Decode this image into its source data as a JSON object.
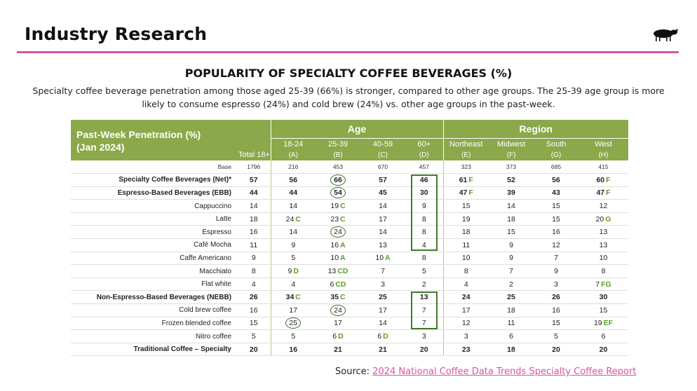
{
  "header": {
    "title": "Industry Research",
    "logo": "sheep-logo"
  },
  "chart": {
    "title": "POPULARITY OF SPECIALTY COFFEE BEVERAGES (%)",
    "subtitle": "Specialty coffee beverage penetration among those aged 25-39 (66%) is stronger, compared to other age groups. The 25-39 age group is more likely to consume espresso (24%) and cold brew (24%) vs. other age groups in the past-week."
  },
  "table": {
    "header_title_line1": "Past-Week Penetration (%)",
    "header_title_line2": "(Jan 2024)",
    "total_label": "Total 18+",
    "group_age": "Age",
    "group_region": "Region",
    "columns": [
      {
        "name": "18-24",
        "letter": "(A)"
      },
      {
        "name": "25-39",
        "letter": "(B)"
      },
      {
        "name": "40-59",
        "letter": "(C)"
      },
      {
        "name": "60+",
        "letter": "(D)"
      },
      {
        "name": "Northeast",
        "letter": "(E)"
      },
      {
        "name": "Midwest",
        "letter": "(F)"
      },
      {
        "name": "South",
        "letter": "(G)"
      },
      {
        "name": "West",
        "letter": "(H)"
      }
    ],
    "rows": [
      {
        "label": "Base",
        "total": "1796",
        "cells": [
          [
            "216",
            ""
          ],
          [
            "453",
            ""
          ],
          [
            "670",
            ""
          ],
          [
            "457",
            ""
          ],
          [
            "323",
            ""
          ],
          [
            "373",
            ""
          ],
          [
            "685",
            ""
          ],
          [
            "415",
            ""
          ]
        ]
      },
      {
        "label": "Specialty Coffee Beverages (Net)*",
        "total": "57",
        "cells": [
          [
            "56",
            ""
          ],
          [
            "66",
            ""
          ],
          [
            "57",
            ""
          ],
          [
            "46",
            ""
          ],
          [
            "61",
            "F"
          ],
          [
            "52",
            ""
          ],
          [
            "56",
            ""
          ],
          [
            "60",
            "F"
          ]
        ]
      },
      {
        "label": "Espresso-Based Beverages (EBB)",
        "total": "44",
        "cells": [
          [
            "44",
            ""
          ],
          [
            "54",
            ""
          ],
          [
            "45",
            ""
          ],
          [
            "30",
            ""
          ],
          [
            "47",
            "F"
          ],
          [
            "39",
            ""
          ],
          [
            "43",
            ""
          ],
          [
            "47",
            "F"
          ]
        ]
      },
      {
        "label": "Cappuccino",
        "total": "14",
        "cells": [
          [
            "14",
            ""
          ],
          [
            "19",
            "C"
          ],
          [
            "14",
            ""
          ],
          [
            "9",
            ""
          ],
          [
            "15",
            ""
          ],
          [
            "14",
            ""
          ],
          [
            "15",
            ""
          ],
          [
            "12",
            ""
          ]
        ]
      },
      {
        "label": "Latte",
        "total": "18",
        "cells": [
          [
            "24",
            "C"
          ],
          [
            "23",
            "C"
          ],
          [
            "17",
            ""
          ],
          [
            "8",
            ""
          ],
          [
            "19",
            ""
          ],
          [
            "18",
            ""
          ],
          [
            "15",
            ""
          ],
          [
            "20",
            "G"
          ]
        ]
      },
      {
        "label": "Espresso",
        "total": "16",
        "cells": [
          [
            "14",
            ""
          ],
          [
            "24",
            ""
          ],
          [
            "14",
            ""
          ],
          [
            "8",
            ""
          ],
          [
            "18",
            ""
          ],
          [
            "15",
            ""
          ],
          [
            "16",
            ""
          ],
          [
            "13",
            ""
          ]
        ]
      },
      {
        "label": "Café Mocha",
        "total": "11",
        "cells": [
          [
            "9",
            ""
          ],
          [
            "16",
            "A"
          ],
          [
            "13",
            ""
          ],
          [
            "4",
            ""
          ],
          [
            "11",
            ""
          ],
          [
            "9",
            ""
          ],
          [
            "12",
            ""
          ],
          [
            "13",
            ""
          ]
        ]
      },
      {
        "label": "Caffe Americano",
        "total": "9",
        "cells": [
          [
            "5",
            ""
          ],
          [
            "10",
            "A"
          ],
          [
            "10",
            "A"
          ],
          [
            "8",
            ""
          ],
          [
            "10",
            ""
          ],
          [
            "9",
            ""
          ],
          [
            "7",
            ""
          ],
          [
            "10",
            ""
          ]
        ]
      },
      {
        "label": "Macchiato",
        "total": "8",
        "cells": [
          [
            "9",
            "D"
          ],
          [
            "13",
            "CD"
          ],
          [
            "7",
            ""
          ],
          [
            "5",
            ""
          ],
          [
            "8",
            ""
          ],
          [
            "7",
            ""
          ],
          [
            "9",
            ""
          ],
          [
            "8",
            ""
          ]
        ]
      },
      {
        "label": "Flat white",
        "total": "4",
        "cells": [
          [
            "4",
            ""
          ],
          [
            "6",
            "CD"
          ],
          [
            "3",
            ""
          ],
          [
            "2",
            ""
          ],
          [
            "4",
            ""
          ],
          [
            "2",
            ""
          ],
          [
            "3",
            ""
          ],
          [
            "7",
            "FG"
          ]
        ]
      },
      {
        "label": "Non-Espresso-Based Beverages (NEBB)",
        "total": "26",
        "cells": [
          [
            "34",
            "C"
          ],
          [
            "35",
            "C"
          ],
          [
            "25",
            ""
          ],
          [
            "13",
            ""
          ],
          [
            "24",
            ""
          ],
          [
            "25",
            ""
          ],
          [
            "26",
            ""
          ],
          [
            "30",
            ""
          ]
        ]
      },
      {
        "label": "Cold brew coffee",
        "total": "16",
        "cells": [
          [
            "17",
            ""
          ],
          [
            "24",
            ""
          ],
          [
            "17",
            ""
          ],
          [
            "7",
            ""
          ],
          [
            "17",
            ""
          ],
          [
            "18",
            ""
          ],
          [
            "16",
            ""
          ],
          [
            "15",
            ""
          ]
        ]
      },
      {
        "label": "Frozen blended coffee",
        "total": "15",
        "cells": [
          [
            "25",
            ""
          ],
          [
            "17",
            ""
          ],
          [
            "14",
            ""
          ],
          [
            "7",
            ""
          ],
          [
            "12",
            ""
          ],
          [
            "11",
            ""
          ],
          [
            "15",
            ""
          ],
          [
            "19",
            "EF"
          ]
        ]
      },
      {
        "label": "Nitro coffee",
        "total": "5",
        "cells": [
          [
            "5",
            ""
          ],
          [
            "6",
            "D"
          ],
          [
            "6",
            "D"
          ],
          [
            "3",
            ""
          ],
          [
            "3",
            ""
          ],
          [
            "6",
            ""
          ],
          [
            "5",
            ""
          ],
          [
            "6",
            ""
          ]
        ]
      },
      {
        "label": "Traditional Coffee – Specialty",
        "total": "20",
        "cells": [
          [
            "16",
            ""
          ],
          [
            "21",
            ""
          ],
          [
            "21",
            ""
          ],
          [
            "20",
            ""
          ],
          [
            "23",
            ""
          ],
          [
            "18",
            ""
          ],
          [
            "20",
            ""
          ],
          [
            "20",
            ""
          ]
        ]
      }
    ]
  },
  "source": {
    "prefix": "Source: ",
    "link_text": "2024 National Coffee Data Trends Specialty Coffee Report"
  },
  "colors": {
    "accent_pink": "#d6569e",
    "header_green": "#8ba84a",
    "significance_green": "#5c9b2a",
    "highlight_dark_green": "#3e7a2a"
  }
}
